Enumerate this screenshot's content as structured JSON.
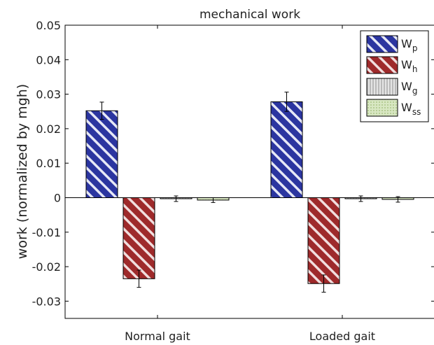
{
  "chart_data": {
    "type": "bar",
    "title": "mechanical work",
    "xlabel": "",
    "ylabel": "work (normalized by mgh)",
    "categories": [
      "Normal gait",
      "Loaded gait"
    ],
    "ylim": [
      -0.035,
      0.05
    ],
    "yticks": [
      0.05,
      0.04,
      0.03,
      0.02,
      0.01,
      0,
      -0.01,
      -0.02,
      -0.03
    ],
    "ytick_labels": [
      "0.05",
      "0.04",
      "0.03",
      "0.02",
      "0.01",
      "0",
      "-0.01",
      "-0.02",
      "-0.03"
    ],
    "grid": false,
    "legend_position": "top-right",
    "series": [
      {
        "base": "W",
        "sub": "p",
        "values": [
          0.0252,
          0.0278
        ],
        "errors": [
          0.0025,
          0.0028
        ],
        "color": "#2b35a0",
        "pattern": "diagonal-stripes"
      },
      {
        "base": "W",
        "sub": "h",
        "values": [
          -0.0235,
          -0.0249
        ],
        "errors": [
          0.0025,
          0.0025
        ],
        "color": "#9e2a2b",
        "pattern": "diagonal-stripes"
      },
      {
        "base": "W",
        "sub": "g",
        "values": [
          -0.0003,
          -0.0003
        ],
        "errors": [
          0.0008,
          0.0008
        ],
        "color": "#c8c8c8",
        "pattern": "vertical-stripes"
      },
      {
        "base": "W",
        "sub": "ss",
        "values": [
          -0.0007,
          -0.0005
        ],
        "errors": [
          0.0007,
          0.0008
        ],
        "color": "#c9dcae",
        "pattern": "dots"
      }
    ]
  }
}
